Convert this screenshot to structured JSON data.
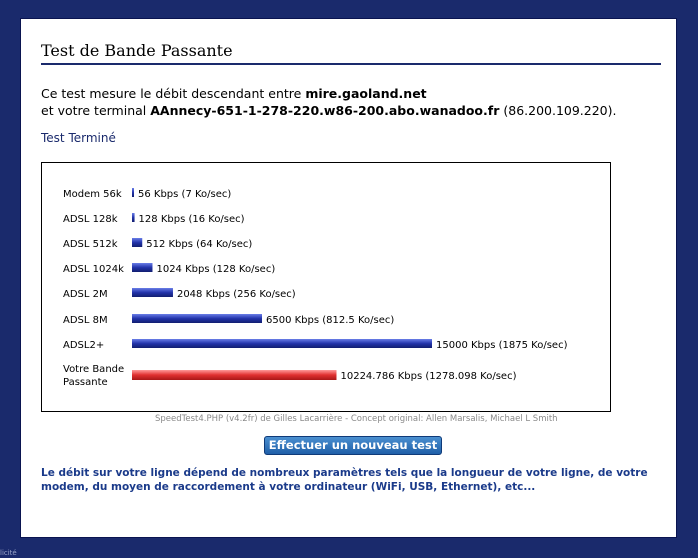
{
  "page": {
    "title": "Test de Bande Passante",
    "intro_line1_prefix": "Ce test mesure le débit descendant entre ",
    "server": "mire.gaoland.net",
    "intro_line2_prefix": "et votre terminal ",
    "terminal_host": "AAnnecy-651-1-278-220.w86-200.abo.wanadoo.fr",
    "terminal_ip": "(86.200.109.220).",
    "status": "Test Terminé",
    "credit": "SpeedTest4.PHP (v4.2fr) de Gilles Lacarrière - Concept original: Allen Marsalis, Michael L Smith",
    "button_label": "Effectuer un nouveau test",
    "note": "Le débit sur votre ligne dépend de nombreux paramètres tels que la longueur de votre ligne, de votre modem, du moyen de raccordement à votre ordinateur (WiFi, USB, Ethernet), etc...",
    "bottom_text": "licité"
  },
  "chart_data": {
    "type": "bar",
    "orientation": "horizontal",
    "categories": [
      "Modem 56k",
      "ADSL 128k",
      "ADSL 512k",
      "ADSL 1024k",
      "ADSL 2M",
      "ADSL 8M",
      "ADSL2+",
      "Votre Bande Passante"
    ],
    "category_lines": [
      [
        "Modem 56k"
      ],
      [
        "ADSL 128k"
      ],
      [
        "ADSL 512k"
      ],
      [
        "ADSL 1024k"
      ],
      [
        "ADSL 2M"
      ],
      [
        "ADSL 8M"
      ],
      [
        "ADSL2+"
      ],
      [
        "Votre Bande",
        "Passante"
      ]
    ],
    "values": [
      56,
      128,
      512,
      1024,
      2048,
      6500,
      15000,
      10224.786
    ],
    "value_labels": [
      "56 Kbps (7 Ko/sec)",
      "128 Kbps (16 Ko/sec)",
      "512 Kbps (64 Ko/sec)",
      "1024 Kbps (128 Ko/sec)",
      "2048 Kbps (256 Ko/sec)",
      "6500 Kbps (812.5 Ko/sec)",
      "15000 Kbps (1875 Ko/sec)",
      "10224.786 Kbps (1278.098 Ko/sec)"
    ],
    "xlim": [
      0,
      15000
    ],
    "colors": {
      "reference": "#2233aa",
      "user": "#e03030"
    }
  }
}
